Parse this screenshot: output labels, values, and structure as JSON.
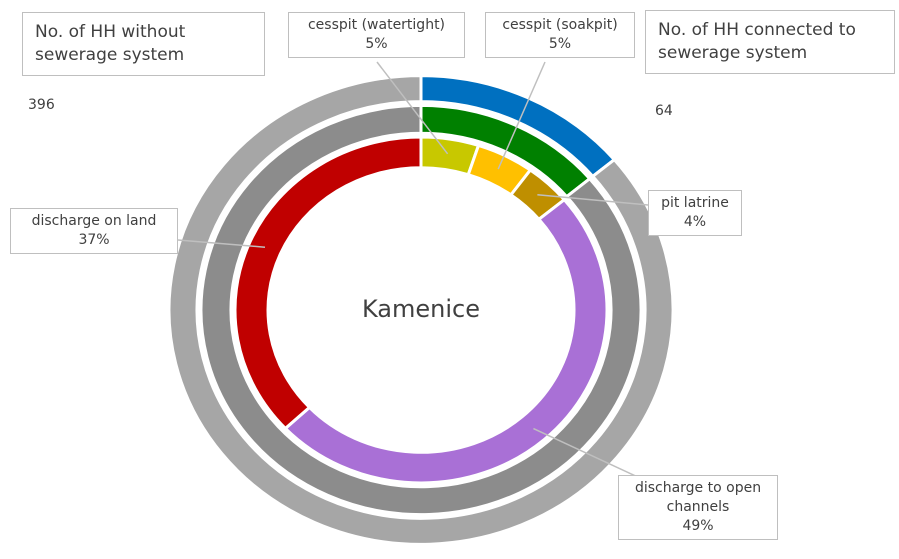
{
  "chart_data": {
    "type": "donut",
    "center_label": "Kamenice",
    "rings": [
      {
        "categories": [
          "No. of HH connected to sewerage system",
          "No. of HH without sewerage system"
        ],
        "values": [
          64,
          396
        ],
        "colors": [
          "#0070c0",
          "#a6a6a6"
        ]
      },
      {
        "values": [
          64,
          396
        ],
        "colors": [
          "#008000",
          "#8c8c8c"
        ]
      },
      {
        "categories": [
          "cesspit (watertight)",
          "cesspit (soakpit)",
          "pit latrine",
          "discharge to open channels",
          "discharge on land"
        ],
        "values": [
          5,
          5,
          4,
          49,
          37
        ],
        "value_labels": [
          "5%",
          "5%",
          "4%",
          "49%",
          "37%"
        ],
        "colors": [
          "#c8c800",
          "#ffc000",
          "#bf8f00",
          "#a970d6",
          "#c00000"
        ]
      }
    ]
  }
}
